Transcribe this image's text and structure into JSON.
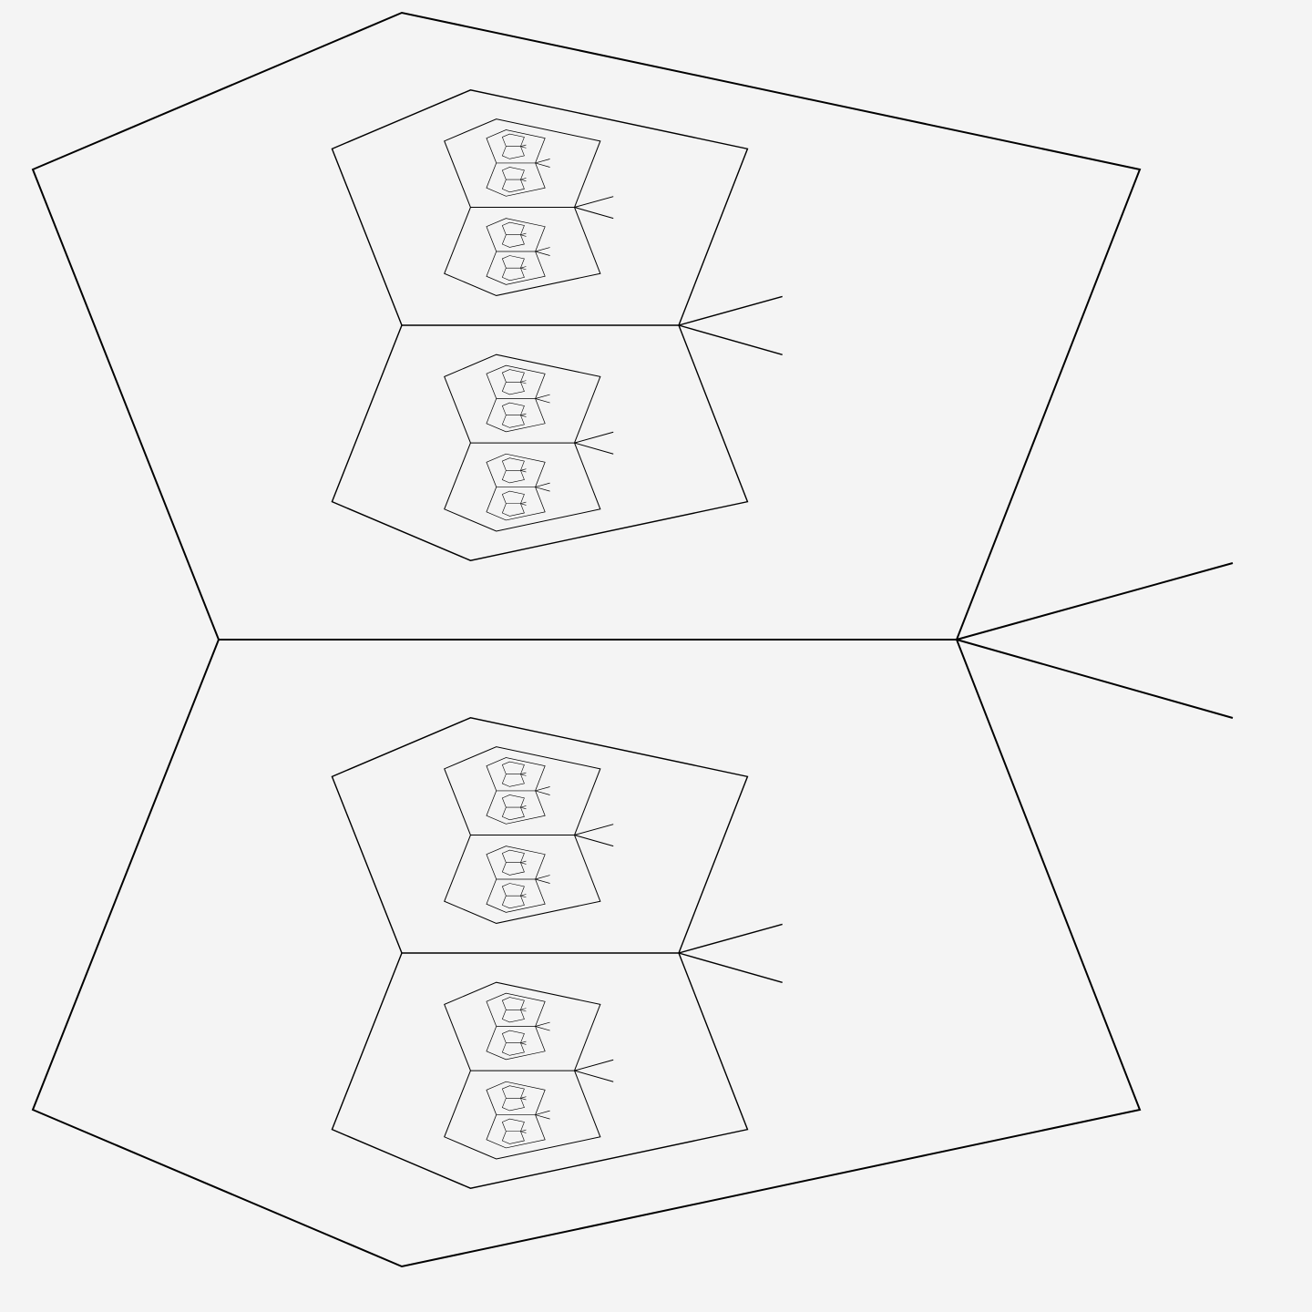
{
  "figure": {
    "description_type": "recursive-fractal-line-drawing",
    "background_color": "#f4f4f4",
    "stroke_color": "#000000",
    "recursion_depth": 5,
    "branch_count_per_level": 2,
    "text_labels": []
  }
}
